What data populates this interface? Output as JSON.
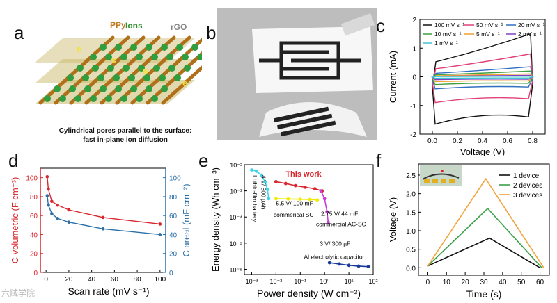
{
  "panels": {
    "a": {
      "letter": "a",
      "labels": {
        "ppy": "PPy",
        "ions": "Ions",
        "rgo": "rGO",
        "e": "e"
      },
      "caption_line1": "Cylindrical pores parallel to the surface:",
      "caption_line2": "fast in-plane ion diffusion"
    },
    "b": {
      "letter": "b"
    },
    "c": {
      "letter": "c"
    },
    "d": {
      "letter": "d"
    },
    "e": {
      "letter": "e",
      "annotations": {
        "this_work": "This work",
        "li_thin_film": "Li thin-film battery",
        "v4": "4 V/ 500 µAh",
        "sc_label": "5.5 V/ 100 mF",
        "commercial_sc": "commerical SC",
        "ac_v": "2.75 V/ 44 mF",
        "ac_sc": "commercial AC-SC",
        "al_v": "3 V/ 300 µF",
        "al_cap": "Al electrolytic capacitor"
      }
    },
    "f": {
      "letter": "f"
    }
  },
  "colors": {
    "red": "#d9252b",
    "blue": "#2b6fa8",
    "cyan": "#3fd3e8",
    "yellow": "#f2ea00",
    "magenta": "#c93cd6",
    "navy": "#1a3a9a",
    "gold": "#f3a23a",
    "green": "#3aa048"
  },
  "chart_data": [
    {
      "id": "c",
      "type": "line",
      "xlabel": "Voltage (V)",
      "ylabel": "Current  (mA)",
      "xlim": [
        -0.1,
        0.9
      ],
      "ylim": [
        -2,
        2
      ],
      "xticks": [
        "0.0",
        "0.2",
        "0.4",
        "0.6",
        "0.8"
      ],
      "yticks": [
        "-2",
        "-1",
        "0",
        "1",
        "2"
      ],
      "legend": [
        "100 mV s⁻¹",
        "50 mV s⁻¹",
        "20 mV s⁻¹",
        "10 mV s⁻¹",
        "5 mV s⁻¹",
        "2 mV s⁻¹",
        "1 mV s⁻¹"
      ],
      "series": [
        {
          "name": "100 mV s⁻¹",
          "color": "#111111",
          "top": 1.5,
          "bottom": -1.65
        },
        {
          "name": "50 mV s⁻¹",
          "color": "#e0407a",
          "top": 0.8,
          "bottom": -0.9
        },
        {
          "name": "20 mV s⁻¹",
          "color": "#3070c0",
          "top": 0.35,
          "bottom": -0.42
        },
        {
          "name": "10 mV s⁻¹",
          "color": "#40a040",
          "top": 0.2,
          "bottom": -0.27
        },
        {
          "name": "5 mV s⁻¹",
          "color": "#f0a030",
          "top": 0.1,
          "bottom": -0.17
        },
        {
          "name": "2 mV s⁻¹",
          "color": "#8040c0",
          "top": 0.05,
          "bottom": -0.1
        },
        {
          "name": "1 mV s⁻¹",
          "color": "#40c0d0",
          "top": 0.02,
          "bottom": -0.05
        }
      ]
    },
    {
      "id": "d",
      "type": "line",
      "xlabel": "Scan rate (mV s⁻¹)",
      "ylabel_left": "C volumetric (F cm⁻³)",
      "ylabel_right": "C areal (mF cm⁻²)",
      "xlim": [
        -5,
        105
      ],
      "ylim_left": [
        0,
        110
      ],
      "ylim_right": [
        0,
        110
      ],
      "xticks": [
        "0",
        "20",
        "40",
        "60",
        "80",
        "100"
      ],
      "yticks_left": [
        "0",
        "20",
        "40",
        "60",
        "80",
        "100"
      ],
      "yticks_right": [
        "0",
        "20",
        "40",
        "60",
        "80",
        "100"
      ],
      "series": [
        {
          "name": "volumetric",
          "axis": "left",
          "color": "#d9252b",
          "x": [
            1,
            2,
            5,
            10,
            20,
            50,
            100
          ],
          "values": [
            101,
            88,
            75,
            71,
            66,
            58,
            51
          ]
        },
        {
          "name": "areal",
          "axis": "right",
          "color": "#2b6fa8",
          "x": [
            1,
            2,
            5,
            10,
            20,
            50,
            100
          ],
          "values": [
            81,
            71,
            62,
            57,
            53,
            46,
            40
          ]
        }
      ]
    },
    {
      "id": "e",
      "type": "scatter",
      "xlabel": "Power density (W cm⁻³)",
      "ylabel": "Energy density (Wh cm⁻³)",
      "xlim_log": [
        -3.3,
        2
      ],
      "ylim_log": [
        -6.2,
        -2
      ],
      "xticks": [
        "10⁻³",
        "10⁻²",
        "10⁻¹",
        "10⁰",
        "10¹",
        "10²"
      ],
      "yticks": [
        "10⁻⁶",
        "10⁻⁵",
        "10⁻⁴",
        "10⁻³",
        "10⁻²"
      ],
      "series": [
        {
          "name": "This work",
          "color": "#d9252b",
          "logx": [
            -2.0,
            -1.6,
            -1.2,
            -0.8,
            -0.4,
            -0.1
          ],
          "logy": [
            -2.65,
            -2.72,
            -2.8,
            -2.86,
            -2.92,
            -3.0
          ]
        },
        {
          "name": "Li thin-film battery",
          "color": "#3fd3e8",
          "logx": [
            -3.0,
            -2.8,
            -2.6,
            -2.45,
            -2.35,
            -2.3
          ],
          "logy": [
            -2.2,
            -2.25,
            -2.4,
            -2.65,
            -2.95,
            -3.3
          ]
        },
        {
          "name": "commerical SC",
          "color": "#f2ea00",
          "logx": [
            -2.0,
            -1.5,
            -1.0,
            -0.6,
            -0.3
          ],
          "logy": [
            -3.3,
            -3.31,
            -3.32,
            -3.33,
            -3.35
          ]
        },
        {
          "name": "commercial AC-SC",
          "color": "#c93cd6",
          "logx": [
            -0.15,
            0.0,
            0.1,
            0.15
          ],
          "logy": [
            -3.0,
            -3.3,
            -3.8,
            -4.2
          ]
        },
        {
          "name": "Al electrolytic capacitor",
          "color": "#1a3a9a",
          "logx": [
            0.2,
            0.6,
            1.0,
            1.4,
            1.8
          ],
          "logy": [
            -5.75,
            -5.8,
            -5.85,
            -5.88,
            -5.9
          ]
        }
      ]
    },
    {
      "id": "f",
      "type": "line",
      "xlabel": "Time (s)",
      "ylabel": "Voltage (V)",
      "xlim": [
        -5,
        65
      ],
      "ylim": [
        -0.2,
        2.8
      ],
      "xticks": [
        "0",
        "10",
        "20",
        "30",
        "40",
        "50",
        "60"
      ],
      "yticks": [
        "0.0",
        "0.5",
        "1.0",
        "1.5",
        "2.0",
        "2.5"
      ],
      "legend": [
        "1 device",
        "2 devices",
        "3 devices"
      ],
      "series": [
        {
          "name": "1 device",
          "color": "#111111",
          "x": [
            0,
            33,
            60
          ],
          "values": [
            0.05,
            0.8,
            0.0
          ]
        },
        {
          "name": "2 devices",
          "color": "#3aa048",
          "x": [
            0,
            32,
            61
          ],
          "values": [
            0.05,
            1.6,
            0.0
          ]
        },
        {
          "name": "3 devices",
          "color": "#f3a23a",
          "x": [
            0,
            31,
            62
          ],
          "values": [
            0.05,
            2.4,
            0.0
          ]
        }
      ]
    }
  ],
  "watermark": "六贼学院"
}
